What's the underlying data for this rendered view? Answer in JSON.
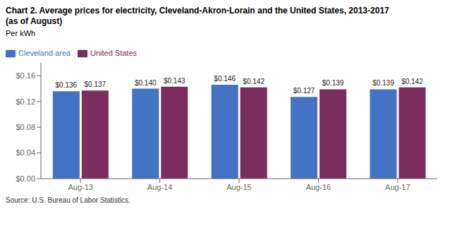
{
  "chart_data": {
    "type": "bar",
    "title": "Chart 2. Average prices for electricity, Cleveland-Akron-Lorain and the United States, 2013-2017",
    "subtitle": "(as of August)",
    "ylabel": "Per kWh",
    "annotations": [
      "Source: U.S. Bureau of Labor Statistics."
    ],
    "categories": [
      "Aug-13",
      "Aug-14",
      "Aug-15",
      "Aug-16",
      "Aug-17"
    ],
    "series": [
      {
        "name": "Cleveland area",
        "color": "#4472C4",
        "values": [
          0.136,
          0.14,
          0.146,
          0.127,
          0.139
        ],
        "value_labels": [
          "$0.136",
          "$0.140",
          "$0.146",
          "$0.127",
          "$0.139"
        ]
      },
      {
        "name": "United States",
        "color": "#7B2D5E",
        "values": [
          0.137,
          0.143,
          0.142,
          0.139,
          0.142
        ],
        "value_labels": [
          "$0.137",
          "$0.143",
          "$0.142",
          "$0.139",
          "$0.142"
        ]
      }
    ],
    "ylim": [
      0,
      0.18
    ],
    "yticks": [
      {
        "value": 0.0,
        "label": "$0.00"
      },
      {
        "value": 0.04,
        "label": "$0.04"
      },
      {
        "value": 0.08,
        "label": "$0.08"
      },
      {
        "value": 0.12,
        "label": "$0.12"
      },
      {
        "value": 0.16,
        "label": "$0.16"
      }
    ],
    "grid": false,
    "legend": "upper left",
    "data_labels": true
  }
}
